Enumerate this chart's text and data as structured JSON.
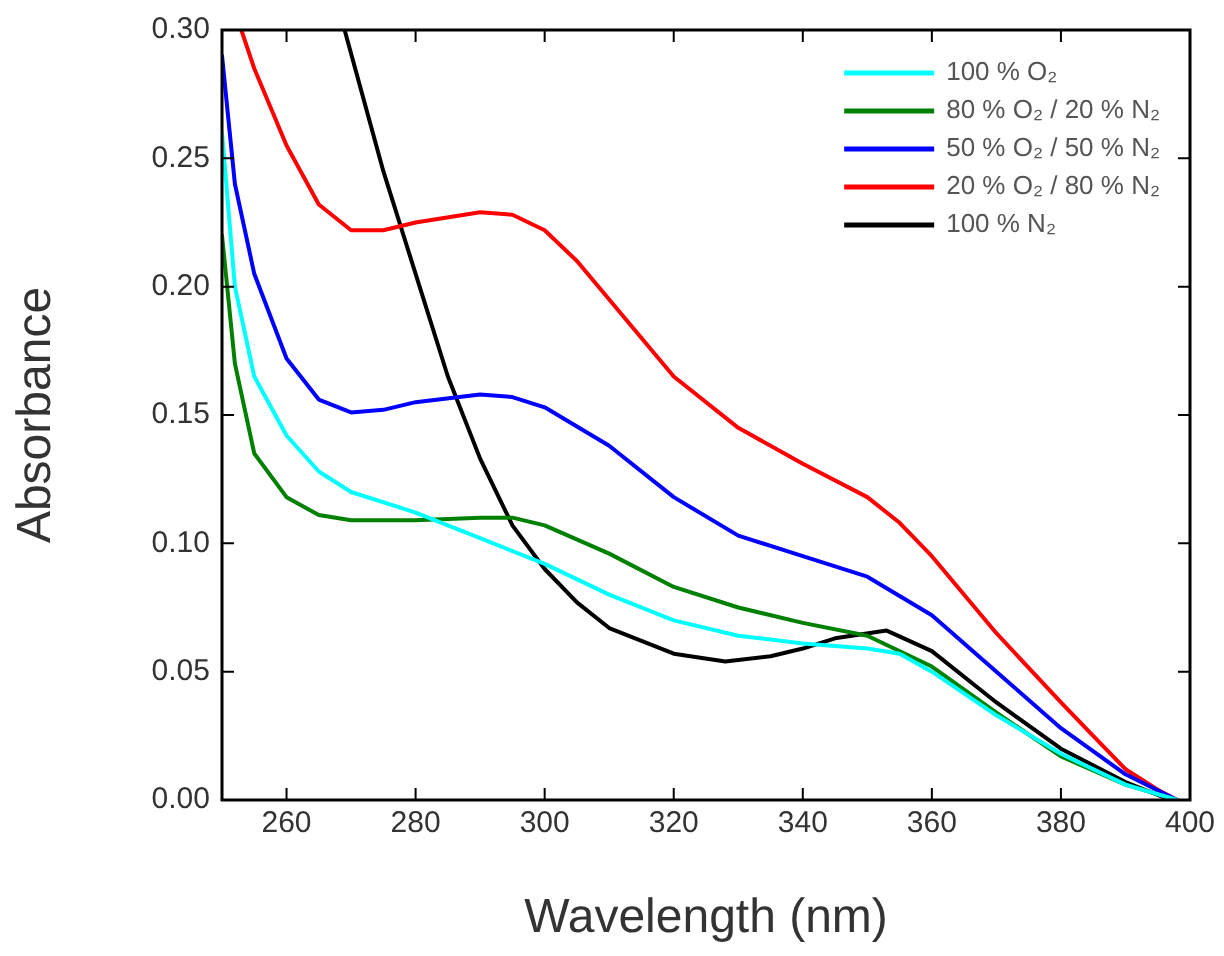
{
  "chart_data": {
    "type": "line",
    "xlabel": "Wavelength (nm)",
    "ylabel": "Absorbance",
    "xlim": [
      250,
      400
    ],
    "xticks": [
      260,
      280,
      300,
      320,
      340,
      360,
      380,
      400
    ],
    "ylim": [
      0,
      0.3
    ],
    "yticks": [
      {
        "value": 0,
        "label": "0.00"
      },
      {
        "value": 0.05,
        "label": "0.05"
      },
      {
        "value": 0.1,
        "label": "0.10"
      },
      {
        "value": 0.15,
        "label": "0.15"
      },
      {
        "value": 0.2,
        "label": "0.20"
      },
      {
        "value": 0.25,
        "label": "0.25"
      },
      {
        "value": 0.3,
        "label": "0.30"
      }
    ],
    "grid": false,
    "legend": "top right",
    "marker": "none",
    "line_style": "solid",
    "series": [
      {
        "name": "100 % O₂",
        "color": "#00ffff",
        "x": [
          250,
          252,
          255,
          260,
          265,
          270,
          280,
          290,
          300,
          310,
          320,
          330,
          340,
          350,
          355,
          360,
          370,
          380,
          390,
          398
        ],
        "values": [
          0.26,
          0.2,
          0.165,
          0.142,
          0.128,
          0.12,
          0.112,
          0.102,
          0.092,
          0.08,
          0.07,
          0.064,
          0.061,
          0.059,
          0.057,
          0.05,
          0.033,
          0.018,
          0.006,
          0
        ]
      },
      {
        "name": "80 % O₂ / 20 % N₂",
        "color": "#008000",
        "x": [
          250,
          252,
          255,
          260,
          265,
          270,
          280,
          290,
          295,
          300,
          310,
          320,
          330,
          340,
          350,
          360,
          370,
          380,
          390,
          398
        ],
        "values": [
          0.22,
          0.17,
          0.135,
          0.118,
          0.111,
          0.109,
          0.109,
          0.11,
          0.11,
          0.107,
          0.096,
          0.083,
          0.075,
          0.069,
          0.064,
          0.052,
          0.034,
          0.017,
          0.006,
          0
        ]
      },
      {
        "name": "50 % O₂ / 50 % N₂",
        "color": "#0000ff",
        "x": [
          250,
          252,
          255,
          260,
          265,
          270,
          275,
          280,
          290,
          295,
          300,
          310,
          320,
          330,
          340,
          350,
          360,
          370,
          380,
          390,
          398
        ],
        "values": [
          0.29,
          0.24,
          0.205,
          0.172,
          0.156,
          0.151,
          0.152,
          0.155,
          0.158,
          0.157,
          0.153,
          0.138,
          0.118,
          0.103,
          0.095,
          0.087,
          0.072,
          0.05,
          0.028,
          0.01,
          0
        ]
      },
      {
        "name": "20 % O₂ / 80 % N₂",
        "color": "#ff0000",
        "x": [
          253,
          255,
          260,
          265,
          270,
          275,
          280,
          290,
          295,
          300,
          305,
          310,
          320,
          330,
          340,
          350,
          355,
          360,
          370,
          380,
          385,
          390,
          395,
          398
        ],
        "values": [
          0.3,
          0.285,
          0.255,
          0.232,
          0.222,
          0.222,
          0.225,
          0.229,
          0.228,
          0.222,
          0.21,
          0.195,
          0.165,
          0.145,
          0.131,
          0.118,
          0.108,
          0.095,
          0.065,
          0.038,
          0.025,
          0.012,
          0.004,
          0
        ]
      },
      {
        "name": "100 % N₂",
        "color": "#000000",
        "x": [
          269,
          275,
          280,
          285,
          290,
          295,
          300,
          305,
          310,
          320,
          328,
          335,
          340,
          345,
          353,
          360,
          370,
          380,
          390,
          397
        ],
        "values": [
          0.3,
          0.245,
          0.205,
          0.165,
          0.133,
          0.107,
          0.09,
          0.077,
          0.067,
          0.057,
          0.054,
          0.056,
          0.059,
          0.063,
          0.066,
          0.058,
          0.038,
          0.02,
          0.007,
          0
        ]
      }
    ]
  }
}
